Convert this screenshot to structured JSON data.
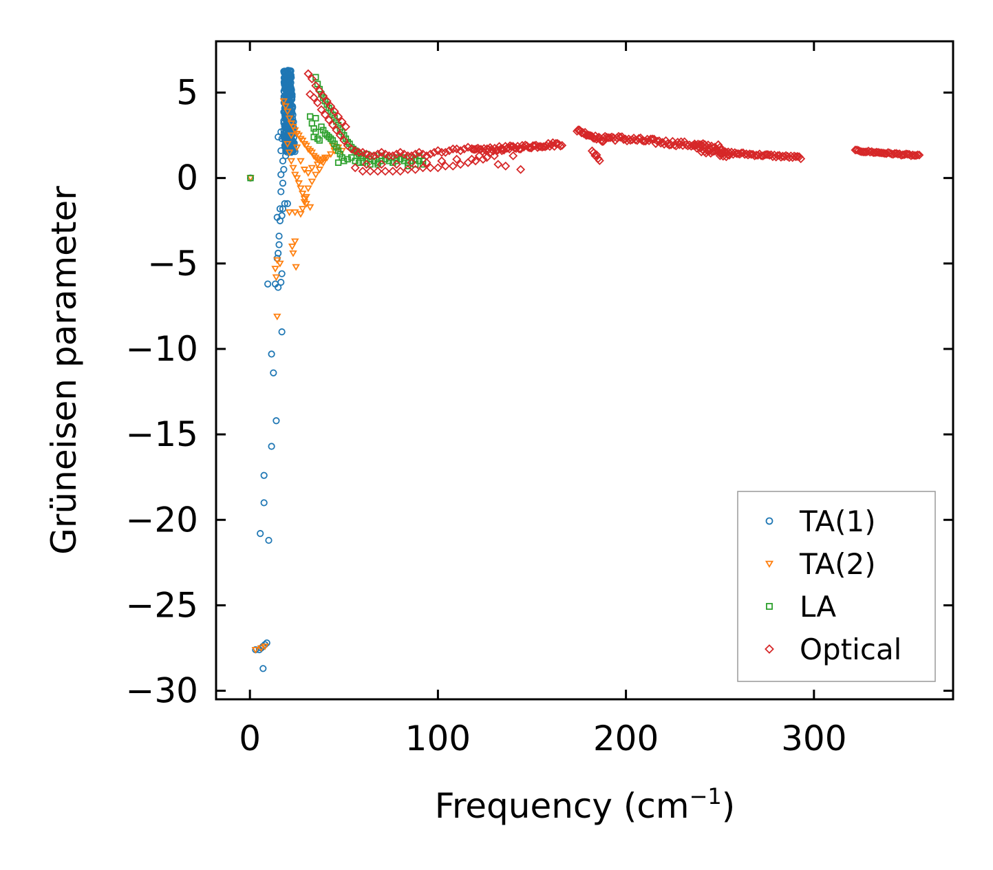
{
  "chart_data": {
    "type": "scatter",
    "title": "",
    "xlabel": "Frequency (cm",
    "xlabel_sup": "−1",
    "xlabel_close": ")",
    "ylabel": "Grüneisen parameter",
    "xlim": [
      -18,
      374
    ],
    "ylim": [
      -30.5,
      8
    ],
    "xticks": [
      0,
      100,
      200,
      300
    ],
    "xtick_labels": [
      "0",
      "100",
      "200",
      "300"
    ],
    "yticks": [
      5,
      0,
      -5,
      -10,
      -15,
      -20,
      -25,
      -30
    ],
    "ytick_labels": [
      "5",
      "0",
      "−5",
      "−10",
      "−15",
      "−20",
      "−25",
      "−30"
    ],
    "grid": false,
    "legend_position": "lower-right",
    "series": [
      {
        "name": "TA(1)",
        "marker": "circle",
        "color": "#1f77b4",
        "points": [
          [
            0.3,
            0.0
          ],
          [
            3,
            -27.6
          ],
          [
            5,
            -27.6
          ],
          [
            6,
            -27.5
          ],
          [
            7,
            -27.4
          ],
          [
            8,
            -27.3
          ],
          [
            9,
            -27.2
          ],
          [
            7,
            -28.7
          ],
          [
            5.5,
            -20.8
          ],
          [
            10,
            -21.2
          ],
          [
            7.5,
            -17.4
          ],
          [
            7.5,
            -19.0
          ],
          [
            11.5,
            -15.7
          ],
          [
            14,
            -14.2
          ],
          [
            12.5,
            -11.4
          ],
          [
            11.5,
            -10.3
          ],
          [
            17,
            -9.0
          ],
          [
            9.5,
            -6.2
          ],
          [
            13.5,
            -6.2
          ],
          [
            15,
            -6.4
          ],
          [
            16.5,
            -6.1
          ],
          [
            17,
            -5.6
          ],
          [
            14.5,
            -4.7
          ],
          [
            15,
            -4.4
          ],
          [
            15.5,
            -3.9
          ],
          [
            15.5,
            -3.4
          ],
          [
            16,
            -2.5
          ],
          [
            14.5,
            -2.3
          ],
          [
            17,
            -2.2
          ],
          [
            16,
            -1.8
          ],
          [
            17.5,
            -1.8
          ],
          [
            18.5,
            -1.5
          ],
          [
            20,
            -1.5
          ],
          [
            16.5,
            -0.8
          ],
          [
            17.5,
            -0.3
          ],
          [
            16.5,
            0.2
          ],
          [
            18,
            0.5
          ],
          [
            17.5,
            1.0
          ],
          [
            19,
            1.3
          ],
          [
            16.5,
            1.6
          ],
          [
            18.5,
            1.9
          ],
          [
            15,
            2.4
          ],
          [
            17,
            2.3
          ],
          [
            16.5,
            2.7
          ]
        ],
        "dense_band": {
          "x_range": [
            18,
            24
          ],
          "y_range": [
            1.5,
            6.3
          ],
          "count": 320
        }
      },
      {
        "name": "TA(2)",
        "marker": "triangle-down",
        "color": "#ff7f0e",
        "points": [
          [
            0.3,
            0.0
          ],
          [
            3,
            -27.6
          ],
          [
            6,
            -27.5
          ],
          [
            8,
            -27.4
          ],
          [
            14.5,
            -8.1
          ],
          [
            14,
            -5.8
          ],
          [
            13.5,
            -5.3
          ],
          [
            16,
            -5.0
          ],
          [
            14.5,
            -4.8
          ],
          [
            23,
            -4.4
          ],
          [
            24.5,
            -5.2
          ],
          [
            22.5,
            -4.0
          ],
          [
            24,
            -3.7
          ],
          [
            21,
            -2.0
          ],
          [
            24,
            -2.0
          ],
          [
            27,
            -2.1
          ],
          [
            28,
            -1.8
          ],
          [
            29,
            -1.4
          ],
          [
            30,
            -1.1
          ],
          [
            31,
            -0.6
          ],
          [
            33,
            -0.2
          ],
          [
            35,
            0.2
          ],
          [
            37,
            0.5
          ],
          [
            39,
            0.9
          ],
          [
            41,
            1.2
          ],
          [
            43,
            1.4
          ],
          [
            45,
            1.6
          ],
          [
            47,
            1.8
          ],
          [
            49,
            1.6
          ],
          [
            18,
            4.5
          ],
          [
            19,
            4.2
          ],
          [
            20,
            3.9
          ],
          [
            21,
            3.5
          ],
          [
            22,
            3.2
          ],
          [
            23,
            3.0
          ],
          [
            24,
            2.8
          ],
          [
            25,
            2.6
          ],
          [
            26,
            2.5
          ],
          [
            27,
            2.3
          ],
          [
            28,
            2.2
          ],
          [
            29,
            2.0
          ],
          [
            30,
            1.9
          ],
          [
            31,
            1.7
          ],
          [
            32,
            1.6
          ],
          [
            33,
            1.5
          ],
          [
            34,
            1.3
          ],
          [
            35,
            1.2
          ],
          [
            36,
            1.1
          ],
          [
            37,
            1.0
          ],
          [
            38,
            1.0
          ],
          [
            39,
            1.1
          ],
          [
            40,
            1.2
          ],
          [
            22,
            1.0
          ],
          [
            23,
            0.6
          ],
          [
            24,
            0.2
          ],
          [
            25,
            0.0
          ],
          [
            26,
            -0.3
          ],
          [
            27,
            -0.6
          ],
          [
            28,
            -0.9
          ],
          [
            29,
            -1.2
          ],
          [
            30,
            -1.5
          ],
          [
            32,
            -1.7
          ],
          [
            20,
            2.0
          ],
          [
            21,
            1.5
          ],
          [
            22,
            2.5
          ],
          [
            25,
            1.8
          ],
          [
            27,
            1.0
          ],
          [
            29,
            0.5
          ],
          [
            31,
            0.3
          ],
          [
            33,
            0.6
          ],
          [
            36,
            0.8
          ],
          [
            44,
            1.9
          ]
        ]
      },
      {
        "name": "LA",
        "marker": "square",
        "color": "#2ca02c",
        "points": [
          [
            0.3,
            0.0
          ],
          [
            32,
            3.6
          ],
          [
            33,
            3.2
          ],
          [
            34,
            2.9
          ],
          [
            35,
            2.7
          ],
          [
            35,
            3.5
          ],
          [
            36,
            2.3
          ],
          [
            37,
            2.2
          ],
          [
            34,
            2.4
          ],
          [
            35,
            5.9
          ],
          [
            36,
            5.5
          ],
          [
            37,
            5.2
          ],
          [
            38,
            4.9
          ],
          [
            39,
            4.7
          ],
          [
            40,
            4.5
          ],
          [
            41,
            4.3
          ],
          [
            42,
            4.1
          ],
          [
            43,
            3.9
          ],
          [
            44,
            3.7
          ],
          [
            45,
            3.5
          ],
          [
            46,
            3.3
          ],
          [
            47,
            3.1
          ],
          [
            48,
            2.9
          ],
          [
            49,
            2.7
          ],
          [
            50,
            2.5
          ],
          [
            51,
            2.3
          ],
          [
            52,
            2.1
          ],
          [
            53,
            2.0
          ],
          [
            54,
            1.8
          ],
          [
            55,
            1.7
          ],
          [
            56,
            1.6
          ],
          [
            57,
            1.5
          ],
          [
            58,
            1.4
          ],
          [
            59,
            1.3
          ],
          [
            60,
            1.2
          ],
          [
            38,
            3.0
          ],
          [
            39,
            2.8
          ],
          [
            40,
            2.6
          ],
          [
            41,
            2.5
          ],
          [
            42,
            2.4
          ],
          [
            43,
            2.3
          ],
          [
            44,
            2.2
          ],
          [
            45,
            2.0
          ],
          [
            46,
            1.8
          ],
          [
            47,
            1.6
          ],
          [
            48,
            1.4
          ],
          [
            49,
            1.2
          ],
          [
            47,
            0.9
          ],
          [
            50,
            1.0
          ],
          [
            52,
            1.1
          ],
          [
            54,
            1.2
          ],
          [
            56,
            1.0
          ],
          [
            58,
            0.9
          ],
          [
            60,
            0.9
          ],
          [
            62,
            1.0
          ],
          [
            64,
            1.1
          ],
          [
            66,
            1.0
          ],
          [
            68,
            0.9
          ],
          [
            70,
            1.0
          ],
          [
            72,
            1.1
          ],
          [
            74,
            1.0
          ],
          [
            76,
            0.9
          ],
          [
            78,
            1.0
          ],
          [
            80,
            1.1
          ],
          [
            82,
            1.0
          ],
          [
            84,
            0.9
          ],
          [
            86,
            1.0
          ],
          [
            88,
            1.1
          ],
          [
            90,
            1.0
          ],
          [
            92,
            1.0
          ],
          [
            62,
            1.4
          ],
          [
            66,
            1.3
          ],
          [
            70,
            1.3
          ],
          [
            74,
            1.2
          ],
          [
            78,
            1.2
          ],
          [
            82,
            1.2
          ],
          [
            86,
            1.2
          ],
          [
            90,
            1.3
          ],
          [
            92,
            0.8
          ],
          [
            88,
            0.8
          ],
          [
            84,
            0.7
          ],
          [
            64,
            0.8
          ],
          [
            68,
            0.8
          ]
        ]
      },
      {
        "name": "Optical",
        "marker": "diamond",
        "color": "#d62728",
        "points": [
          [
            31,
            6.1
          ],
          [
            33,
            5.8
          ],
          [
            35,
            5.4
          ],
          [
            37,
            5.1
          ],
          [
            39,
            4.8
          ],
          [
            41,
            4.5
          ],
          [
            43,
            4.2
          ],
          [
            45,
            3.9
          ],
          [
            47,
            3.6
          ],
          [
            49,
            3.3
          ],
          [
            51,
            3.0
          ],
          [
            32,
            4.9
          ],
          [
            34,
            4.7
          ],
          [
            36,
            4.4
          ],
          [
            38,
            4.0
          ],
          [
            40,
            3.7
          ],
          [
            42,
            3.4
          ],
          [
            44,
            3.1
          ],
          [
            46,
            2.8
          ],
          [
            48,
            2.5
          ],
          [
            50,
            2.2
          ],
          [
            52,
            1.9
          ],
          [
            54,
            1.7
          ],
          [
            56,
            1.6
          ],
          [
            58,
            1.5
          ],
          [
            60,
            1.5
          ],
          [
            62,
            1.4
          ],
          [
            64,
            1.3
          ],
          [
            66,
            1.3
          ],
          [
            68,
            1.4
          ],
          [
            70,
            1.5
          ],
          [
            72,
            1.4
          ],
          [
            74,
            1.3
          ],
          [
            76,
            1.3
          ],
          [
            78,
            1.4
          ],
          [
            80,
            1.5
          ],
          [
            82,
            1.4
          ],
          [
            84,
            1.3
          ],
          [
            86,
            1.3
          ],
          [
            88,
            1.4
          ],
          [
            90,
            1.5
          ],
          [
            92,
            1.4
          ],
          [
            94,
            1.3
          ],
          [
            96,
            1.4
          ],
          [
            98,
            1.5
          ],
          [
            100,
            1.6
          ],
          [
            102,
            1.5
          ],
          [
            104,
            1.5
          ],
          [
            106,
            1.6
          ],
          [
            108,
            1.7
          ],
          [
            110,
            1.7
          ],
          [
            112,
            1.6
          ],
          [
            114,
            1.7
          ],
          [
            116,
            1.8
          ],
          [
            56,
            0.6
          ],
          [
            60,
            0.4
          ],
          [
            64,
            0.4
          ],
          [
            68,
            0.4
          ],
          [
            72,
            0.4
          ],
          [
            76,
            0.4
          ],
          [
            80,
            0.4
          ],
          [
            84,
            0.5
          ],
          [
            88,
            0.5
          ],
          [
            92,
            0.6
          ],
          [
            96,
            0.6
          ],
          [
            100,
            0.6
          ],
          [
            104,
            0.7
          ],
          [
            108,
            0.7
          ],
          [
            112,
            0.8
          ],
          [
            116,
            0.9
          ],
          [
            120,
            1.0
          ],
          [
            124,
            1.1
          ],
          [
            126,
            1.2
          ],
          [
            130,
            1.3
          ],
          [
            132,
            0.8
          ],
          [
            136,
            0.7
          ],
          [
            144,
            0.5
          ],
          [
            140,
            1.3
          ],
          [
            62,
            0.8
          ],
          [
            70,
            0.8
          ],
          [
            78,
            0.8
          ],
          [
            86,
            0.9
          ],
          [
            94,
            0.9
          ],
          [
            102,
            1.0
          ],
          [
            110,
            1.1
          ],
          [
            118,
            1.1
          ],
          [
            122,
            1.3
          ],
          [
            128,
            1.5
          ],
          [
            134,
            1.6
          ],
          [
            138,
            1.7
          ]
        ],
        "bands": [
          {
            "x_range": [
              118,
              166
            ],
            "y_start": 1.6,
            "y_end": 2.0,
            "spread": 0.25,
            "count": 60
          },
          {
            "x_range": [
              174,
              188
            ],
            "y_start": 2.8,
            "y_end": 2.2,
            "spread": 0.2,
            "count": 24
          },
          {
            "x_range": [
              182,
              186
            ],
            "y_start": 1.5,
            "y_end": 1.1,
            "spread": 0.2,
            "count": 6
          },
          {
            "x_range": [
              188,
              250
            ],
            "y_start": 2.4,
            "y_end": 1.8,
            "spread": 0.3,
            "count": 70
          },
          {
            "x_range": [
              236,
              255
            ],
            "y_start": 1.8,
            "y_end": 1.4,
            "spread": 0.4,
            "count": 24
          },
          {
            "x_range": [
              250,
              293
            ],
            "y_start": 1.5,
            "y_end": 1.2,
            "spread": 0.15,
            "count": 50
          },
          {
            "x_range": [
              322,
              356
            ],
            "y_start": 1.6,
            "y_end": 1.3,
            "spread": 0.1,
            "count": 40
          }
        ]
      }
    ],
    "legend": [
      "TA(1)",
      "TA(2)",
      "LA",
      "Optical"
    ]
  }
}
